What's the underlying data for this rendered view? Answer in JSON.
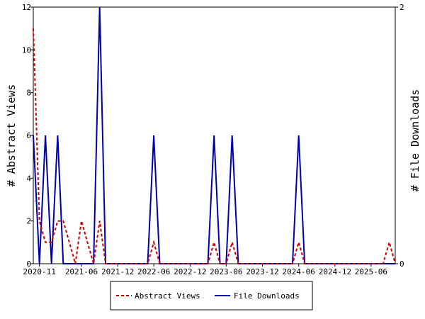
{
  "chart_data": {
    "type": "line",
    "y_left": {
      "label": "# Abstract Views",
      "range": [
        0,
        12
      ],
      "ticks": [
        0,
        2,
        4,
        6,
        8,
        10,
        12
      ]
    },
    "y_right": {
      "label": "# File Downloads",
      "range": [
        0,
        2
      ],
      "ticks": [
        0,
        2
      ]
    },
    "x_range": [
      "2020-10-01",
      "2025-10-01"
    ],
    "x_ticks": [
      "2020-11",
      "2021-06",
      "2021-12",
      "2022-06",
      "2022-12",
      "2023-06",
      "2023-12",
      "2024-06",
      "2024-12",
      "2025-06"
    ],
    "series": [
      {
        "name": "Abstract Views",
        "axis": "left",
        "color": "#cc0000",
        "style": "dashed",
        "x": [
          "2020-10-01",
          "2020-11-01",
          "2020-12-01",
          "2021-01-01",
          "2021-02-01",
          "2021-03-01",
          "2021-04-01",
          "2021-05-01",
          "2021-06-01",
          "2021-07-01",
          "2021-08-01",
          "2021-09-01",
          "2021-10-01",
          "2021-11-01",
          "2021-12-01",
          "2022-01-01",
          "2022-02-01",
          "2022-03-01",
          "2022-04-01",
          "2022-05-01",
          "2022-06-01",
          "2022-07-01",
          "2022-08-01",
          "2022-09-01",
          "2022-10-01",
          "2022-11-01",
          "2022-12-01",
          "2023-01-01",
          "2023-02-01",
          "2023-03-01",
          "2023-04-01",
          "2023-05-01",
          "2023-06-01",
          "2023-07-01",
          "2023-08-01",
          "2023-09-01",
          "2023-10-01",
          "2023-11-01",
          "2023-12-01",
          "2024-01-01",
          "2024-02-01",
          "2024-03-01",
          "2024-04-01",
          "2024-05-01",
          "2024-06-01",
          "2024-07-01",
          "2024-08-01",
          "2024-09-01",
          "2024-10-01",
          "2024-11-01",
          "2024-12-01",
          "2025-01-01",
          "2025-02-01",
          "2025-03-01",
          "2025-04-01",
          "2025-05-01",
          "2025-06-01",
          "2025-07-01",
          "2025-08-01",
          "2025-09-01",
          "2025-10-01"
        ],
        "values": [
          11,
          2,
          1,
          1,
          2,
          2,
          1,
          0,
          2,
          1,
          0,
          2,
          0,
          0,
          0,
          0,
          0,
          0,
          0,
          0,
          1,
          0,
          0,
          0,
          0,
          0,
          0,
          0,
          0,
          0,
          1,
          0,
          0,
          1,
          0,
          0,
          0,
          0,
          0,
          0,
          0,
          0,
          0,
          0,
          1,
          0,
          0,
          0,
          0,
          0,
          0,
          0,
          0,
          0,
          0,
          0,
          0,
          0,
          0,
          1,
          0
        ]
      },
      {
        "name": "File Downloads",
        "axis": "right",
        "color": "#0000aa",
        "style": "solid",
        "x": [
          "2020-10-01",
          "2020-11-01",
          "2020-12-01",
          "2021-01-01",
          "2021-02-01",
          "2021-03-01",
          "2021-04-01",
          "2021-05-01",
          "2021-06-01",
          "2021-07-01",
          "2021-08-01",
          "2021-09-01",
          "2021-10-01",
          "2021-11-01",
          "2021-12-01",
          "2022-01-01",
          "2022-02-01",
          "2022-03-01",
          "2022-04-01",
          "2022-05-01",
          "2022-06-01",
          "2022-07-01",
          "2022-08-01",
          "2022-09-01",
          "2022-10-01",
          "2022-11-01",
          "2022-12-01",
          "2023-01-01",
          "2023-02-01",
          "2023-03-01",
          "2023-04-01",
          "2023-05-01",
          "2023-06-01",
          "2023-07-01",
          "2023-08-01",
          "2023-09-01",
          "2023-10-01",
          "2023-11-01",
          "2023-12-01",
          "2024-01-01",
          "2024-02-01",
          "2024-03-01",
          "2024-04-01",
          "2024-05-01",
          "2024-06-01",
          "2024-07-01",
          "2024-08-01",
          "2024-09-01",
          "2024-10-01",
          "2024-11-01",
          "2024-12-01",
          "2025-01-01",
          "2025-02-01",
          "2025-03-01",
          "2025-04-01",
          "2025-05-01",
          "2025-06-01",
          "2025-07-01",
          "2025-08-01",
          "2025-09-01",
          "2025-10-01"
        ],
        "values": [
          1,
          0,
          1,
          0,
          1,
          0,
          0,
          0,
          0,
          0,
          0,
          2,
          0,
          0,
          0,
          0,
          0,
          0,
          0,
          0,
          1,
          0,
          0,
          0,
          0,
          0,
          0,
          0,
          0,
          0,
          1,
          0,
          0,
          1,
          0,
          0,
          0,
          0,
          0,
          0,
          0,
          0,
          0,
          0,
          1,
          0,
          0,
          0,
          0,
          0,
          0,
          0,
          0,
          0,
          0,
          0,
          0,
          0,
          0,
          0,
          0
        ]
      }
    ],
    "legend": {
      "position": "bottom-center",
      "entries": [
        "Abstract Views",
        "File Downloads"
      ]
    }
  }
}
